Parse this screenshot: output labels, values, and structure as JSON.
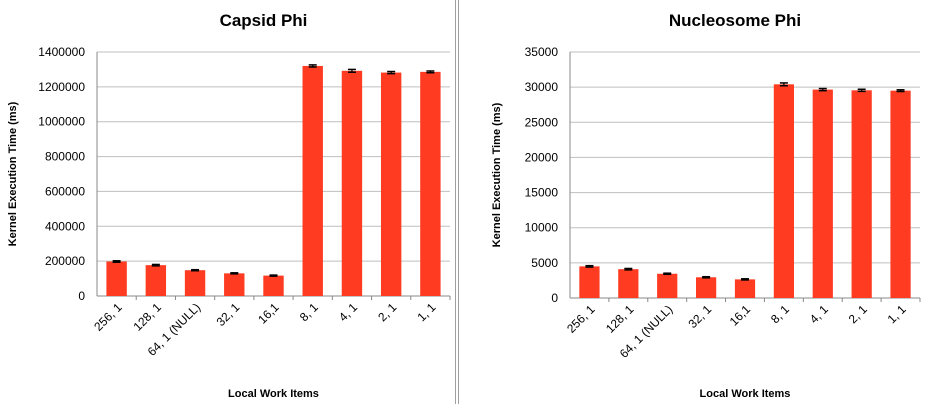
{
  "chart_data": [
    {
      "type": "bar",
      "title": "Capsid Phi",
      "xlabel": "Local Work Items",
      "ylabel": "Kernel Execution Time (ms)",
      "categories": [
        "256, 1",
        "128, 1",
        "64, 1 (NULL)",
        "32, 1",
        "16,1",
        "8, 1",
        "4, 1",
        "2, 1",
        "1, 1"
      ],
      "values": [
        198000,
        177000,
        148000,
        130000,
        117000,
        1320000,
        1292000,
        1282000,
        1286000
      ],
      "errors": [
        4000,
        4000,
        3000,
        3000,
        3000,
        6000,
        8000,
        6000,
        5000
      ],
      "ylim": [
        0,
        1400000
      ],
      "yticks": [
        "0",
        "200000",
        "400000",
        "600000",
        "800000",
        "1000000",
        "1200000",
        "1400000"
      ],
      "grid": true,
      "bar_color": "#ff3b22",
      "grid_color": "#bfbfbf"
    },
    {
      "type": "bar",
      "title": "Nucleosome Phi",
      "xlabel": "Local Work Items",
      "ylabel": "Kernel Execution Time (ms)",
      "categories": [
        "256, 1",
        "128, 1",
        "64, 1 (NULL)",
        "32, 1",
        "16,1",
        "8, 1",
        "4, 1",
        "2, 1",
        "1, 1"
      ],
      "values": [
        4500,
        4100,
        3450,
        2950,
        2650,
        30400,
        29650,
        29550,
        29500
      ],
      "errors": [
        100,
        100,
        80,
        80,
        80,
        200,
        150,
        150,
        120
      ],
      "ylim": [
        0,
        35000
      ],
      "yticks": [
        "0",
        "5000",
        "10000",
        "15000",
        "20000",
        "25000",
        "30000",
        "35000"
      ],
      "grid": true,
      "bar_color": "#ff3b22",
      "grid_color": "#bfbfbf"
    }
  ]
}
